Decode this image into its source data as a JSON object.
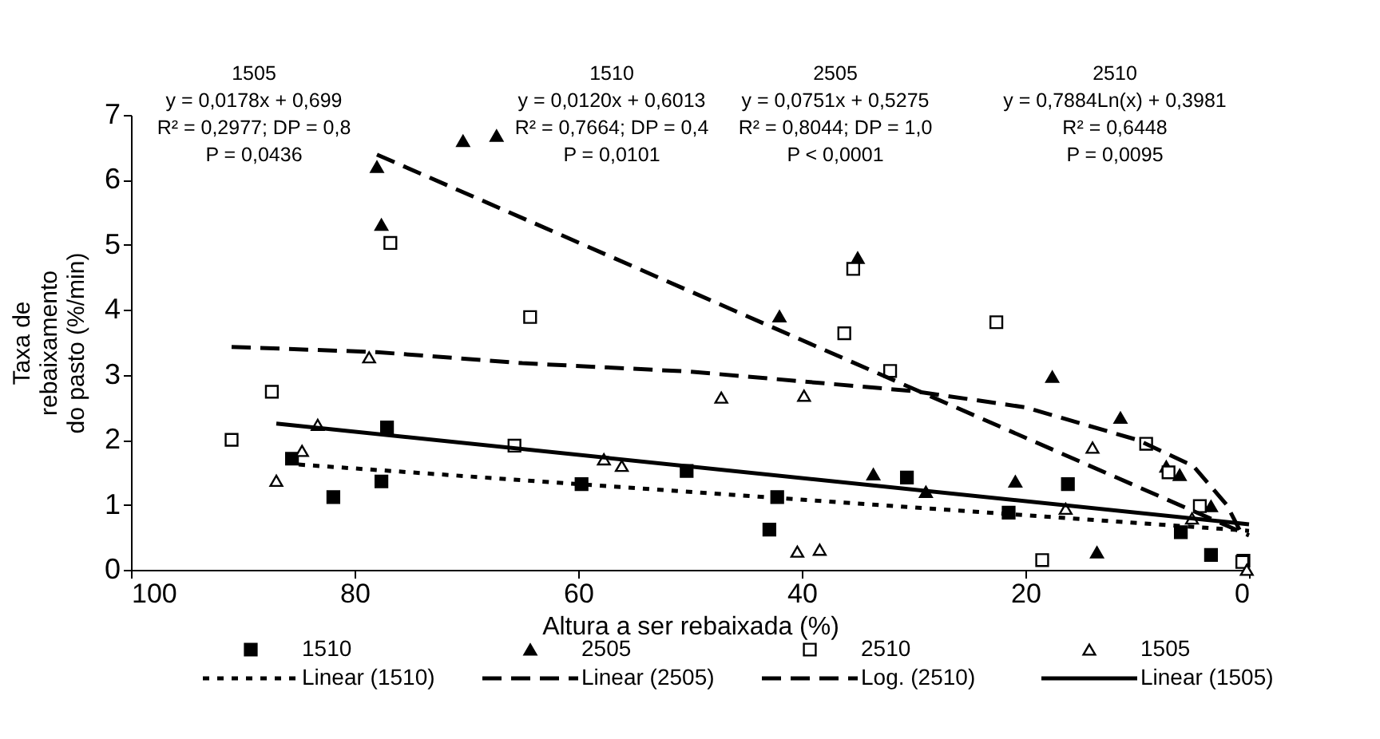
{
  "chart_data": {
    "type": "scatter",
    "xlabel": "Altura a ser rebaixada (%)",
    "ylabel": "Taxa de\nrebaixamento\ndo pasto (%/min)",
    "xlim": [
      100,
      0
    ],
    "xticks": [
      100,
      80,
      60,
      40,
      20,
      0
    ],
    "ylim": [
      0,
      7
    ],
    "yticks": [
      0,
      1,
      2,
      3,
      4,
      5,
      6,
      7
    ],
    "grid": false,
    "legend": "bottom",
    "annotations": [
      "1505\ny = 0,0178x + 0,699\nR² = 0,2977; DP = 0,8\nP = 0,0436",
      "1510\ny = 0,0120x + 0,6013\nR² = 0,7664; DP = 0,4\nP = 0,0101",
      "2505\ny = 0,0751x + 0,5275\nR² = 0,8044; DP = 1,0\nP < 0,0001",
      "2510\ny = 0,7884Ln(x) + 0,3981\nR² = 0,6448\nP = 0,0095"
    ],
    "series": [
      {
        "name": "1510",
        "marker": "square",
        "color": "#000000",
        "x": [
          85.6,
          81.9,
          77.6,
          77.1,
          59.7,
          50.3,
          42.2,
          42.9,
          30.6,
          21.5,
          16.2,
          6.1,
          3.4,
          0.5
        ],
        "values": [
          1.71,
          1.12,
          1.36,
          2.19,
          1.32,
          1.52,
          1.12,
          0.62,
          1.42,
          0.88,
          1.32,
          0.58,
          0.23,
          0.14
        ]
      },
      {
        "name": "2505",
        "marker": "triangle",
        "color": "#000000",
        "x": [
          78.0,
          77.6,
          70.3,
          67.3,
          35.0,
          42.0,
          17.6,
          11.5,
          33.6,
          28.9,
          20.9,
          13.6,
          7.4,
          6.2,
          3.4
        ],
        "values": [
          6.2,
          5.31,
          6.6,
          6.68,
          4.8,
          3.9,
          2.97,
          2.34,
          1.47,
          1.2,
          1.36,
          0.27,
          1.59,
          1.46,
          0.98
        ]
      },
      {
        "name": "2510",
        "marker": "square",
        "color": "#ffffff",
        "x": [
          76.8,
          64.3,
          87.4,
          91.0,
          65.7,
          35.4,
          36.2,
          22.6,
          32.1,
          18.5,
          9.2,
          7.2,
          4.4,
          0.6
        ],
        "values": [
          5.03,
          3.89,
          2.74,
          2.0,
          1.91,
          4.63,
          3.64,
          3.81,
          3.06,
          0.15,
          1.94,
          1.5,
          0.98,
          0.12
        ]
      },
      {
        "name": "1505",
        "marker": "triangle",
        "color": "#ffffff",
        "x": [
          78.7,
          87.0,
          84.7,
          83.3,
          57.7,
          56.1,
          47.2,
          39.8,
          40.4,
          38.4,
          14.0,
          16.4,
          5.1,
          0.2
        ],
        "values": [
          3.27,
          1.37,
          1.83,
          2.23,
          1.7,
          1.6,
          2.65,
          2.68,
          0.28,
          0.31,
          1.88,
          0.94,
          0.79,
          0.0
        ]
      },
      {
        "name": "Linear (1510)",
        "type": "line",
        "marker": "none",
        "line_style": "dotted",
        "color": "#000000",
        "x": [
          85,
          0
        ],
        "values": [
          1.62,
          0.6
        ]
      },
      {
        "name": "Linear (2505)",
        "type": "line",
        "marker": "none",
        "line_style": "dashed",
        "color": "#000000",
        "x": [
          78,
          0
        ],
        "values": [
          6.39,
          0.53
        ]
      },
      {
        "name": "Log. (2510)",
        "type": "line",
        "marker": "none",
        "line_style": "dashed",
        "color": "#000000",
        "x": [
          91,
          78,
          65,
          50,
          40,
          30,
          20,
          10,
          5,
          2,
          0.5
        ],
        "values": [
          3.43,
          3.35,
          3.18,
          3.05,
          2.9,
          2.75,
          2.5,
          2.0,
          1.6,
          1.0,
          0.5
        ]
      },
      {
        "name": "Linear (1505)",
        "type": "line",
        "marker": "none",
        "line_style": "solid",
        "color": "#000000",
        "x": [
          87,
          0
        ],
        "values": [
          2.25,
          0.7
        ]
      }
    ]
  }
}
